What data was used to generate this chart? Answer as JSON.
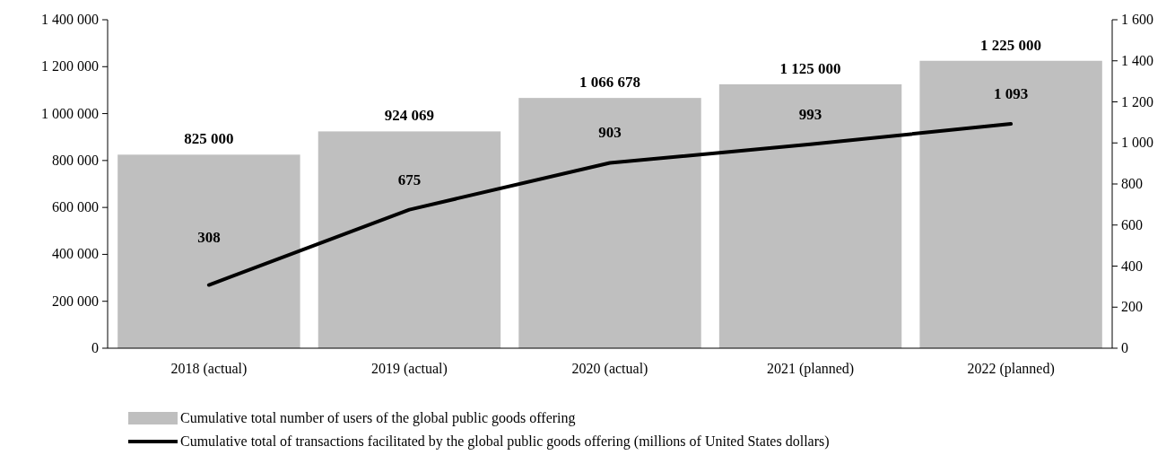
{
  "chart_data": {
    "type": "bar",
    "categories": [
      "2018 (actual)",
      "2019 (actual)",
      "2020 (actual)",
      "2021 (planned)",
      "2022 (planned)"
    ],
    "series": [
      {
        "name": "Cumulative total number of users of the global public goods offering",
        "color": "#bfbfbf",
        "values": [
          825000,
          924069,
          1066678,
          1125000,
          1225000
        ],
        "value_labels": [
          "825 000",
          "924 069",
          "1 066 678",
          "1 125 000",
          "1 225 000"
        ]
      },
      {
        "name": "Cumulative total of transactions facilitated by the global public goods offering (millions of United States dollars)",
        "type": "line",
        "axis": "y2",
        "color": "#000000",
        "values": [
          308,
          675,
          903,
          993,
          1093
        ],
        "value_labels": [
          "308",
          "675",
          "903",
          "993",
          "1 093"
        ]
      }
    ],
    "ylim": [
      0,
      1400000
    ],
    "yticks": [
      0,
      {
        "value": 200000,
        "label": "200 000"
      },
      {
        "value": 400000,
        "label": "400 000"
      },
      {
        "value": 600000,
        "label": "600 000"
      },
      {
        "value": 800000,
        "label": "800 000"
      },
      {
        "value": 1000000,
        "label": "1 000 000"
      },
      {
        "value": 1200000,
        "label": "1 200 000"
      },
      {
        "value": 1400000,
        "label": "1 400 000"
      }
    ],
    "y2lim": [
      0,
      1600
    ],
    "y2ticks": [
      0,
      200,
      400,
      600,
      800,
      {
        "value": 1000,
        "label": "1 000"
      },
      {
        "value": 1200,
        "label": "1 200"
      },
      {
        "value": 1400,
        "label": "1 400"
      },
      {
        "value": 1600,
        "label": "1 600"
      }
    ],
    "legend": "bottom",
    "marker": "none",
    "line_style": "solid"
  }
}
